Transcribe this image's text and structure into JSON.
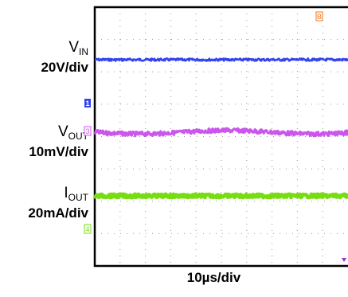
{
  "chart_data": {
    "type": "line",
    "title": "",
    "xlabel": "10µs/div",
    "grid": true,
    "channels": [
      {
        "name_main": "V",
        "name_sub": "IN",
        "scale": "20V/div",
        "marker": "1",
        "color": "#3344ee"
      },
      {
        "name_main": "V",
        "name_sub": "OUT",
        "scale": "10mV/div",
        "marker": "3",
        "color": "#cc55ee"
      },
      {
        "name_main": "I",
        "name_sub": "OUT",
        "scale": "20mA/div",
        "marker": "4",
        "color": "#77dd11"
      }
    ],
    "trigger_marker": "B",
    "series": [
      {
        "name": "VIN",
        "values": [
          0,
          0,
          0,
          0,
          0,
          0,
          0,
          0,
          0,
          0,
          0
        ]
      },
      {
        "name": "VOUT",
        "values": [
          0,
          0,
          0,
          0,
          0,
          0,
          0,
          0,
          0,
          0,
          0
        ]
      },
      {
        "name": "IOUT",
        "values": [
          0,
          0,
          0,
          0,
          0,
          0,
          0,
          0,
          0,
          0,
          0
        ]
      }
    ]
  }
}
